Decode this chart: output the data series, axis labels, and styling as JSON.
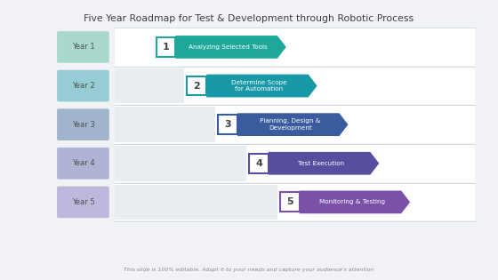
{
  "title": "Five Year Roadmap for Test & Development through Robotic Process",
  "subtitle": "This slide is 100% editable. Adapt it to your needs and capture your audience's attention",
  "years": [
    "Year 1",
    "Year 2",
    "Year 3",
    "Year 4",
    "Year 5"
  ],
  "steps": [
    {
      "num": "1",
      "label": "Analyzing Selected Tools"
    },
    {
      "num": "2",
      "label": "Determine Scope\nfor Automation"
    },
    {
      "num": "3",
      "label": "Planning, Design &\nDevelopment"
    },
    {
      "num": "4",
      "label": "Test Execution"
    },
    {
      "num": "5",
      "label": "Monitoring & Testing"
    }
  ],
  "year_box_colors": [
    "#a8d8ce",
    "#96cdd4",
    "#a0b4cc",
    "#b0b4d4",
    "#beb8dc"
  ],
  "arrow_colors": [
    "#1fa89a",
    "#1899a8",
    "#3a5c9e",
    "#574ea0",
    "#7a50a8"
  ],
  "number_box_border_colors": [
    "#1fa89a",
    "#1899a8",
    "#3a5c9e",
    "#574ea0",
    "#7a50a8"
  ],
  "bg_color": "#f0f2f5",
  "chart_bg": "#ffffff",
  "title_color": "#404040",
  "year_text_color": "#505050",
  "arrow_text_color": "#ffffff",
  "number_text_color": "#404040",
  "grid_line_color": "#d0d8e0",
  "stair_bg_color": "#e8edf2"
}
